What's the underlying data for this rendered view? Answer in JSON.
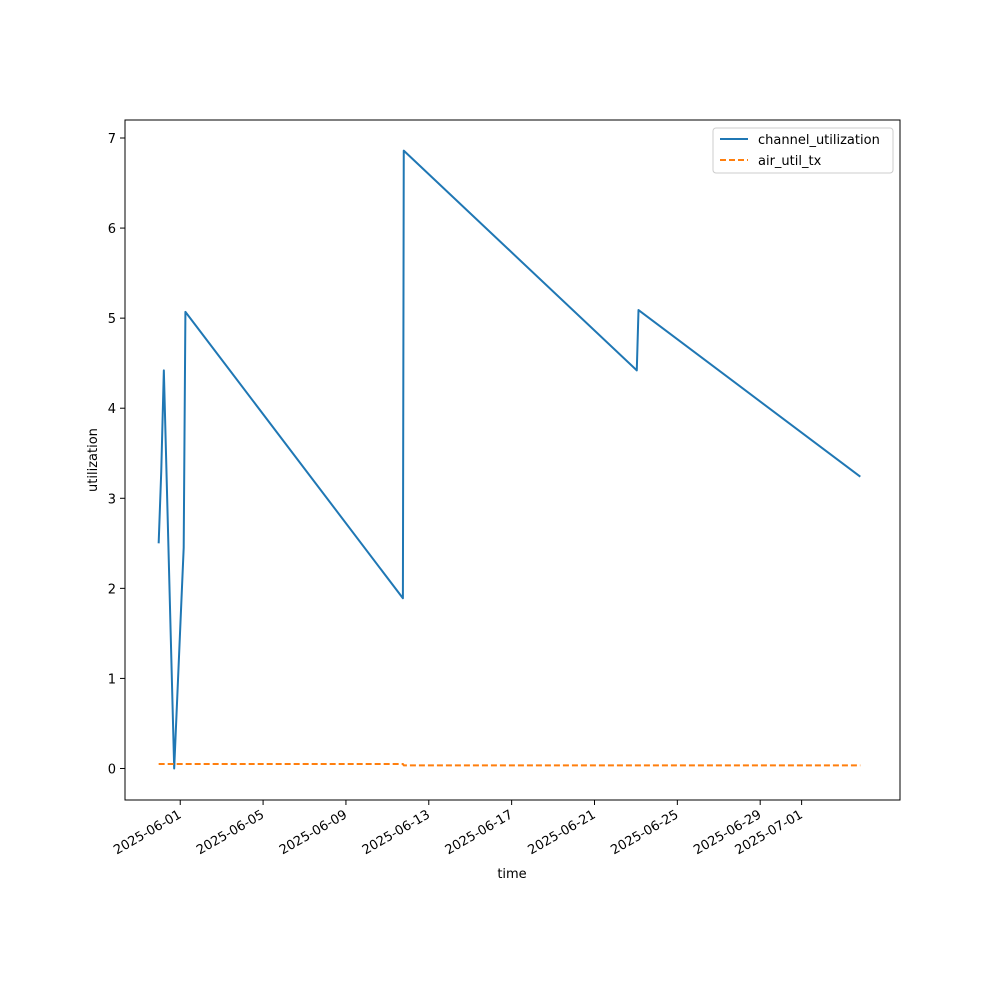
{
  "chart_data": {
    "type": "line",
    "title": "",
    "xlabel": "time",
    "ylabel": "utilization",
    "x_axis_type": "date",
    "xlim": [
      "2025-05-29T08:00",
      "2025-07-05T18:00"
    ],
    "ylim": [
      -0.35,
      7.2
    ],
    "x_ticks": [
      "2025-06-01",
      "2025-06-05",
      "2025-06-09",
      "2025-06-13",
      "2025-06-17",
      "2025-06-21",
      "2025-06-25",
      "2025-06-29",
      "2025-07-01"
    ],
    "y_ticks": [
      0,
      1,
      2,
      3,
      4,
      5,
      6,
      7
    ],
    "grid": false,
    "legend_position": "top-right",
    "series": [
      {
        "name": "channel_utilization",
        "color": "#1f77b4",
        "style": "solid",
        "points": [
          {
            "x": "2025-05-30T23:00",
            "y": 2.5
          },
          {
            "x": "2025-05-31T02:00",
            "y": 3.3
          },
          {
            "x": "2025-05-31T05:00",
            "y": 4.42
          },
          {
            "x": "2025-05-31T17:00",
            "y": 0.0
          },
          {
            "x": "2025-06-01T04:00",
            "y": 2.45
          },
          {
            "x": "2025-06-01T06:00",
            "y": 5.07
          },
          {
            "x": "2025-06-11T18:00",
            "y": 1.89
          },
          {
            "x": "2025-06-11T19:00",
            "y": 6.86
          },
          {
            "x": "2025-06-23T01:00",
            "y": 4.42
          },
          {
            "x": "2025-06-23T03:00",
            "y": 5.09
          },
          {
            "x": "2025-07-03T20:00",
            "y": 3.24
          }
        ]
      },
      {
        "name": "air_util_tx",
        "color": "#ff7f0e",
        "style": "dashed",
        "points": [
          {
            "x": "2025-05-30T23:00",
            "y": 0.05
          },
          {
            "x": "2025-06-11T18:00",
            "y": 0.05
          },
          {
            "x": "2025-06-11T19:00",
            "y": 0.035
          },
          {
            "x": "2025-07-03T20:00",
            "y": 0.035
          }
        ]
      }
    ]
  }
}
